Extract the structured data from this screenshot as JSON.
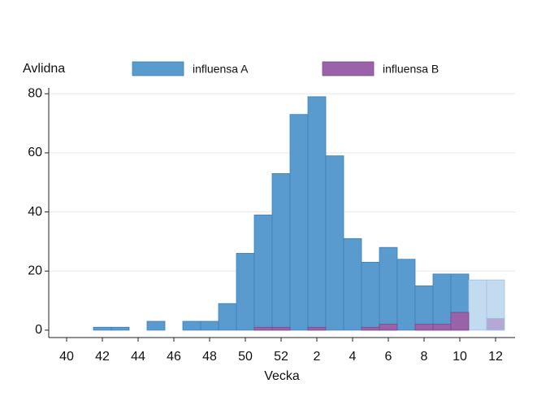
{
  "chart_data": {
    "type": "bar",
    "y_label": "Avlidna",
    "x_label": "Vecka",
    "categories": [
      "40",
      null,
      "42",
      null,
      "44",
      null,
      "46",
      null,
      "48",
      null,
      "50",
      null,
      "52",
      null,
      "2",
      null,
      "4",
      null,
      "6",
      null,
      "8",
      null,
      "10",
      null,
      "12"
    ],
    "series": [
      {
        "name": "influensa A",
        "color": "#5a9bcf",
        "faded_color": "#c2dbee",
        "values": [
          0,
          0,
          1,
          1,
          0,
          3,
          0,
          3,
          3,
          9,
          26,
          39,
          53,
          73,
          79,
          59,
          31,
          23,
          28,
          24,
          15,
          19,
          19,
          17,
          17
        ]
      },
      {
        "name": "influensa B",
        "color": "#9a62a8",
        "faded_color": "#b3a9d4",
        "values": [
          0,
          0,
          0,
          0,
          0,
          0,
          0,
          0,
          0,
          0,
          0,
          1,
          1,
          0,
          1,
          0,
          0,
          1,
          2,
          0,
          2,
          2,
          6,
          0,
          4
        ]
      }
    ],
    "faded_last": 2,
    "ylim": [
      -2.5,
      82
    ],
    "yticks": [
      0,
      20,
      40,
      60,
      80
    ],
    "grid": true,
    "legend": "top"
  }
}
